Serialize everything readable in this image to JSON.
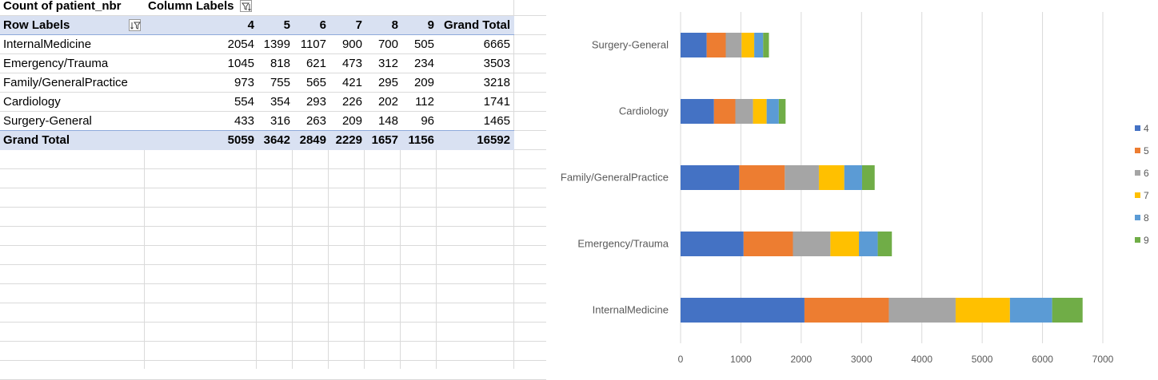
{
  "pivot": {
    "value_field": "Count of patient_nbr",
    "column_labels": "Column Labels",
    "row_labels": "Row Labels",
    "columns": [
      "4",
      "5",
      "6",
      "7",
      "8",
      "9",
      "Grand Total"
    ],
    "rows": [
      {
        "label": "InternalMedicine",
        "values": [
          "2054",
          "1399",
          "1107",
          "900",
          "700",
          "505",
          "6665"
        ]
      },
      {
        "label": "Emergency/Trauma",
        "values": [
          "1045",
          "818",
          "621",
          "473",
          "312",
          "234",
          "3503"
        ]
      },
      {
        "label": "Family/GeneralPractice",
        "values": [
          "973",
          "755",
          "565",
          "421",
          "295",
          "209",
          "3218"
        ]
      },
      {
        "label": "Cardiology",
        "values": [
          "554",
          "354",
          "293",
          "226",
          "202",
          "112",
          "1741"
        ]
      },
      {
        "label": "Surgery-General",
        "values": [
          "433",
          "316",
          "263",
          "209",
          "148",
          "96",
          "1465"
        ]
      }
    ],
    "grand_total": {
      "label": "Grand Total",
      "values": [
        "5059",
        "3642",
        "2849",
        "2229",
        "1657",
        "1156",
        "16592"
      ]
    }
  },
  "chart_data": {
    "type": "bar",
    "orientation": "horizontal",
    "stacked": true,
    "categories": [
      "InternalMedicine",
      "Emergency/Trauma",
      "Family/GeneralPractice",
      "Cardiology",
      "Surgery-General"
    ],
    "series": [
      {
        "name": "4",
        "color": "#4472c4",
        "values": [
          2054,
          1045,
          973,
          554,
          433
        ]
      },
      {
        "name": "5",
        "color": "#ed7d31",
        "values": [
          1399,
          818,
          755,
          354,
          316
        ]
      },
      {
        "name": "6",
        "color": "#a5a5a5",
        "values": [
          1107,
          621,
          565,
          293,
          263
        ]
      },
      {
        "name": "7",
        "color": "#ffc000",
        "values": [
          900,
          473,
          421,
          226,
          209
        ]
      },
      {
        "name": "8",
        "color": "#5b9bd5",
        "values": [
          700,
          312,
          295,
          202,
          148
        ]
      },
      {
        "name": "9",
        "color": "#70ad47",
        "values": [
          505,
          234,
          209,
          112,
          96
        ]
      }
    ],
    "xlim": [
      0,
      7000
    ],
    "x_ticks": [
      "0",
      "1000",
      "2000",
      "3000",
      "4000",
      "5000",
      "6000",
      "7000"
    ],
    "grid": true,
    "legend_position": "right"
  }
}
